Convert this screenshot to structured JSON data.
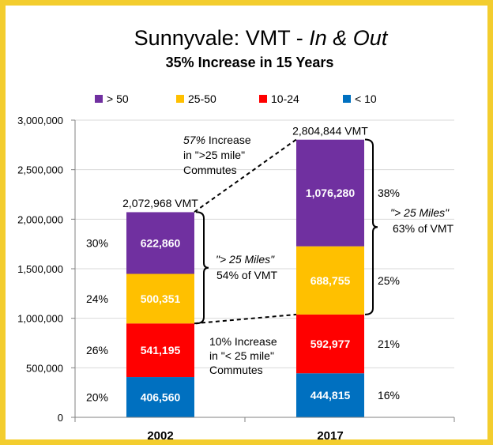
{
  "chart_data": {
    "type": "bar",
    "stacked": true,
    "title_main": "Sunnyvale: VMT - ",
    "title_italic": "In & Out",
    "subtitle": "35% Increase in 15 Years",
    "categories": [
      "2002",
      "2017"
    ],
    "ylim": [
      0,
      3000000
    ],
    "yticks": [
      0,
      500000,
      1000000,
      1500000,
      2000000,
      2500000,
      3000000
    ],
    "ytick_labels": [
      "0",
      "500,000",
      "1,000,000",
      "1,500,000",
      "2,000,000",
      "2,500,000",
      "3,000,000"
    ],
    "grid": true,
    "legend_position": "top",
    "series": [
      {
        "name": "< 10",
        "color": "#0070c0",
        "values": [
          406560,
          444815
        ],
        "labels": [
          "406,560",
          "444,815"
        ],
        "percents": [
          "20%",
          "16%"
        ]
      },
      {
        "name": "10-24",
        "color": "#ff0000",
        "values": [
          541195,
          592977
        ],
        "labels": [
          "541,195",
          "592,977"
        ],
        "percents": [
          "26%",
          "21%"
        ]
      },
      {
        "name": "25-50",
        "color": "#ffc000",
        "values": [
          500351,
          688755
        ],
        "labels": [
          "500,351",
          "688,755"
        ],
        "percents": [
          "24%",
          "25%"
        ]
      },
      {
        "name": "> 50",
        "color": "#7030a0",
        "values": [
          622860,
          1076280
        ],
        "labels": [
          "622,860",
          "1,076,280"
        ],
        "percents": [
          "30%",
          "38%"
        ]
      }
    ],
    "legend_order": [
      "> 50",
      "25-50",
      "10-24",
      "< 10"
    ],
    "totals": [
      2072968,
      2804844
    ],
    "total_labels": [
      "2,072,968 VMT",
      "2,804,844 VMT"
    ],
    "annotations": {
      "increase_over_25": {
        "italic": "57%",
        "lines": [
          " Increase",
          "in \">25 mile\"",
          "Commutes"
        ]
      },
      "increase_under_25": {
        "lines": [
          "10% Increase",
          "in \"< 25 mile\"",
          "Commutes"
        ]
      },
      "share_2002": {
        "italic": "\"> 25 Miles\"",
        "line2": "54% of VMT"
      },
      "share_2017": {
        "italic": "\"> 25 Miles\"",
        "line2": "63% of VMT"
      }
    },
    "colors": {
      "frame": "#f3cd2e",
      "grid": "#d9d9d9",
      "text": "#000000"
    }
  }
}
